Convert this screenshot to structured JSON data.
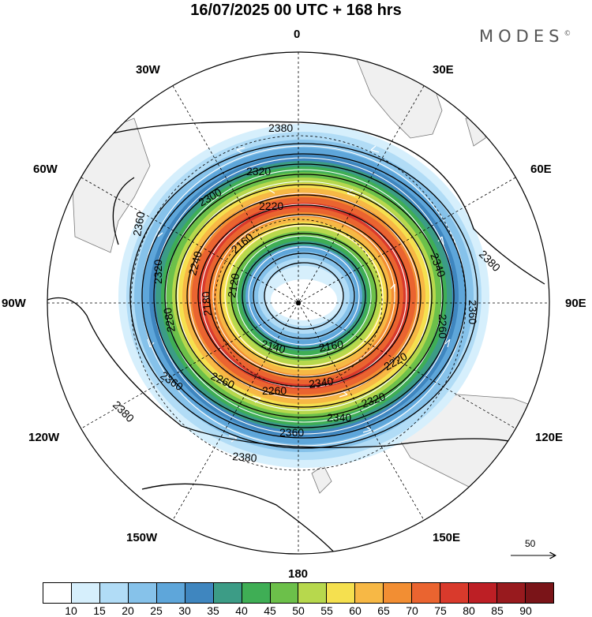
{
  "title": "16/07/2025  00 UTC  + 168 hrs",
  "brand": "MODES",
  "brand_mark": "©",
  "map": {
    "projection": "polar-stereographic-south",
    "longitude_labels": {
      "top": "0",
      "top_right": "30E",
      "right_upper": "60E",
      "right": "90E",
      "right_lower": "120E",
      "bottom_right": "150E",
      "bottom": "180",
      "bottom_left": "150W",
      "left_lower": "120W",
      "left": "90W",
      "left_upper": "60W",
      "top_left": "30W"
    },
    "contour_labels": [
      "2380",
      "2360",
      "2340",
      "2320",
      "2300",
      "2280",
      "2260",
      "2240",
      "2220",
      "2200",
      "2180",
      "2160",
      "2140",
      "2120"
    ],
    "contour_label_placements": [
      {
        "text": "2380",
        "pos": "top"
      },
      {
        "text": "2320",
        "pos": "upper-inner"
      },
      {
        "text": "2300",
        "pos": "upper-left-inner"
      },
      {
        "text": "2220",
        "pos": "upper-center"
      },
      {
        "text": "2160",
        "pos": "inner-upper"
      },
      {
        "text": "2360",
        "pos": "left"
      },
      {
        "text": "2320",
        "pos": "left-inner"
      },
      {
        "text": "2240",
        "pos": "left-mid"
      },
      {
        "text": "2120",
        "pos": "center-left"
      },
      {
        "text": "2180",
        "pos": "left-mid-inner"
      },
      {
        "text": "2280",
        "pos": "left-lower"
      },
      {
        "text": "2340",
        "pos": "right-upper"
      },
      {
        "text": "2380",
        "pos": "right-outer"
      },
      {
        "text": "2360",
        "pos": "right"
      },
      {
        "text": "2260",
        "pos": "right-inner"
      },
      {
        "text": "2140",
        "pos": "center-lower"
      },
      {
        "text": "2160",
        "pos": "center-lower-right"
      },
      {
        "text": "2220",
        "pos": "lower-right"
      },
      {
        "text": "2260",
        "pos": "lower-left"
      },
      {
        "text": "2260",
        "pos": "lower-center"
      },
      {
        "text": "2340",
        "pos": "lower-center-right"
      },
      {
        "text": "2320",
        "pos": "lower-right-outer"
      },
      {
        "text": "2360",
        "pos": "lower-left-outer"
      },
      {
        "text": "2340",
        "pos": "lower-bottom"
      },
      {
        "text": "2360",
        "pos": "bottom"
      },
      {
        "text": "2380",
        "pos": "bottom-left"
      },
      {
        "text": "2380",
        "pos": "bottom"
      }
    ]
  },
  "vector_reference": {
    "label": "50"
  },
  "colorbar": {
    "labels": [
      "10",
      "15",
      "20",
      "25",
      "30",
      "35",
      "40",
      "45",
      "50",
      "55",
      "60",
      "65",
      "70",
      "75",
      "80",
      "85",
      "90"
    ],
    "colors": [
      "#ffffff",
      "#d6effc",
      "#b1dcf6",
      "#86c2ea",
      "#5ea6da",
      "#3f86bf",
      "#3c9c86",
      "#3fae55",
      "#6cc04a",
      "#b7d84d",
      "#f5e04f",
      "#f7b845",
      "#f28e33",
      "#ea6430",
      "#d93a2c",
      "#bd1f25",
      "#981a1e",
      "#7a1418"
    ]
  },
  "colors": {
    "land": "#f0f0f0",
    "coast": "#777777",
    "grid": "#000000",
    "contour": "#000000",
    "streamline": "#ffffff"
  }
}
